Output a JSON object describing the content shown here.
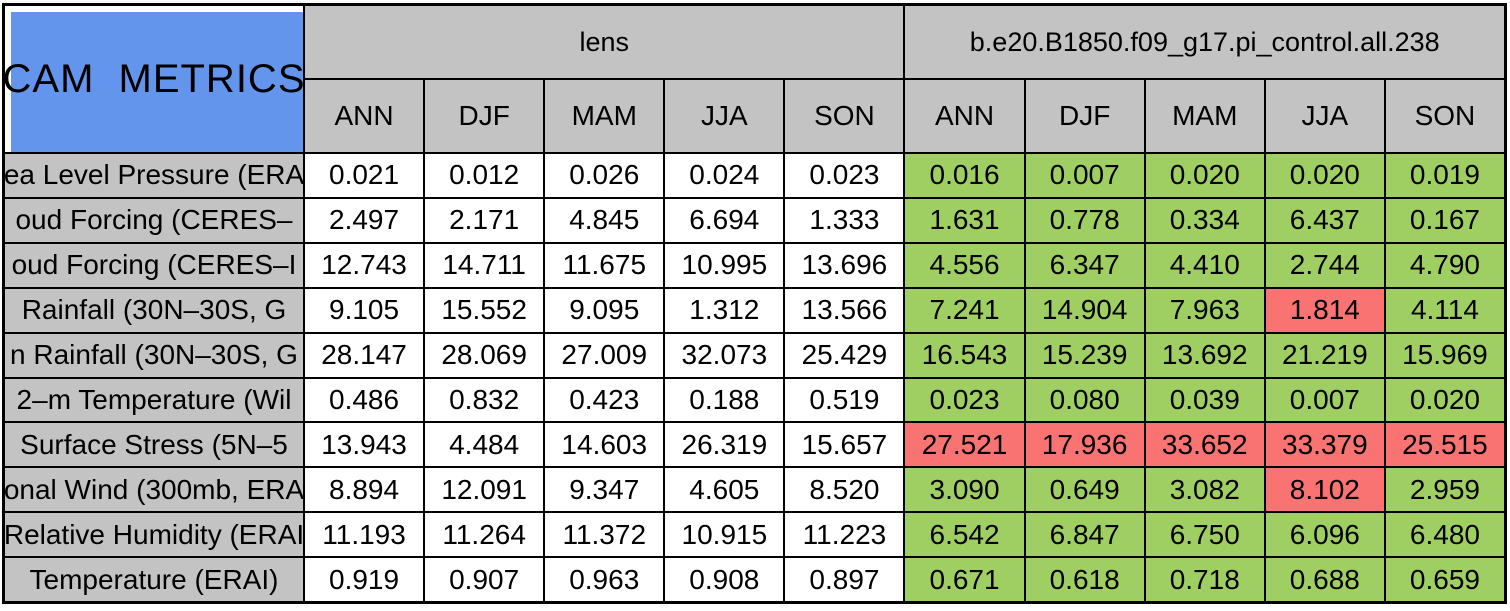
{
  "title": "CAM METRICS",
  "groups": [
    {
      "label": "lens"
    },
    {
      "label": "b.e20.B1850.f09_g17.pi_control.all.238"
    }
  ],
  "seasons": [
    "ANN",
    "DJF",
    "MAM",
    "JJA",
    "SON"
  ],
  "colors": {
    "title_bg": "#6495ED",
    "header_bg": "#C3C3C3",
    "good": "#9FCE63",
    "bad": "#F97373",
    "neutral": "#FFFFFF",
    "grid": "#000000"
  },
  "rows": [
    {
      "label": "ea Level Pressure (ERA",
      "lens": [
        "0.021",
        "0.012",
        "0.026",
        "0.024",
        "0.023"
      ],
      "control": [
        "0.016",
        "0.007",
        "0.020",
        "0.020",
        "0.019"
      ],
      "control_status": [
        "good",
        "good",
        "good",
        "good",
        "good"
      ]
    },
    {
      "label": "oud Forcing (CERES–",
      "lens": [
        "2.497",
        "2.171",
        "4.845",
        "6.694",
        "1.333"
      ],
      "control": [
        "1.631",
        "0.778",
        "0.334",
        "6.437",
        "0.167"
      ],
      "control_status": [
        "good",
        "good",
        "good",
        "good",
        "good"
      ]
    },
    {
      "label": "oud Forcing (CERES–I",
      "lens": [
        "12.743",
        "14.711",
        "11.675",
        "10.995",
        "13.696"
      ],
      "control": [
        "4.556",
        "6.347",
        "4.410",
        "2.744",
        "4.790"
      ],
      "control_status": [
        "good",
        "good",
        "good",
        "good",
        "good"
      ]
    },
    {
      "label": "Rainfall (30N–30S, G",
      "lens": [
        "9.105",
        "15.552",
        "9.095",
        "1.312",
        "13.566"
      ],
      "control": [
        "7.241",
        "14.904",
        "7.963",
        "1.814",
        "4.114"
      ],
      "control_status": [
        "good",
        "good",
        "good",
        "bad",
        "good"
      ]
    },
    {
      "label": "n Rainfall (30N–30S, G",
      "lens": [
        "28.147",
        "28.069",
        "27.009",
        "32.073",
        "25.429"
      ],
      "control": [
        "16.543",
        "15.239",
        "13.692",
        "21.219",
        "15.969"
      ],
      "control_status": [
        "good",
        "good",
        "good",
        "good",
        "good"
      ]
    },
    {
      "label": "2–m Temperature (Wil",
      "lens": [
        "0.486",
        "0.832",
        "0.423",
        "0.188",
        "0.519"
      ],
      "control": [
        "0.023",
        "0.080",
        "0.039",
        "0.007",
        "0.020"
      ],
      "control_status": [
        "good",
        "good",
        "good",
        "good",
        "good"
      ]
    },
    {
      "label": "Surface Stress (5N–5",
      "lens": [
        "13.943",
        "4.484",
        "14.603",
        "26.319",
        "15.657"
      ],
      "control": [
        "27.521",
        "17.936",
        "33.652",
        "33.379",
        "25.515"
      ],
      "control_status": [
        "bad",
        "bad",
        "bad",
        "bad",
        "bad"
      ]
    },
    {
      "label": "onal Wind (300mb, ERA",
      "lens": [
        "8.894",
        "12.091",
        "9.347",
        "4.605",
        "8.520"
      ],
      "control": [
        "3.090",
        "0.649",
        "3.082",
        "8.102",
        "2.959"
      ],
      "control_status": [
        "good",
        "good",
        "good",
        "bad",
        "good"
      ]
    },
    {
      "label": "Relative Humidity (ERAI",
      "lens": [
        "11.193",
        "11.264",
        "11.372",
        "10.915",
        "11.223"
      ],
      "control": [
        "6.542",
        "6.847",
        "6.750",
        "6.096",
        "6.480"
      ],
      "control_status": [
        "good",
        "good",
        "good",
        "good",
        "good"
      ]
    },
    {
      "label": "Temperature (ERAI)",
      "lens": [
        "0.919",
        "0.907",
        "0.963",
        "0.908",
        "0.897"
      ],
      "control": [
        "0.671",
        "0.618",
        "0.718",
        "0.688",
        "0.659"
      ],
      "control_status": [
        "good",
        "good",
        "good",
        "good",
        "good"
      ]
    }
  ]
}
